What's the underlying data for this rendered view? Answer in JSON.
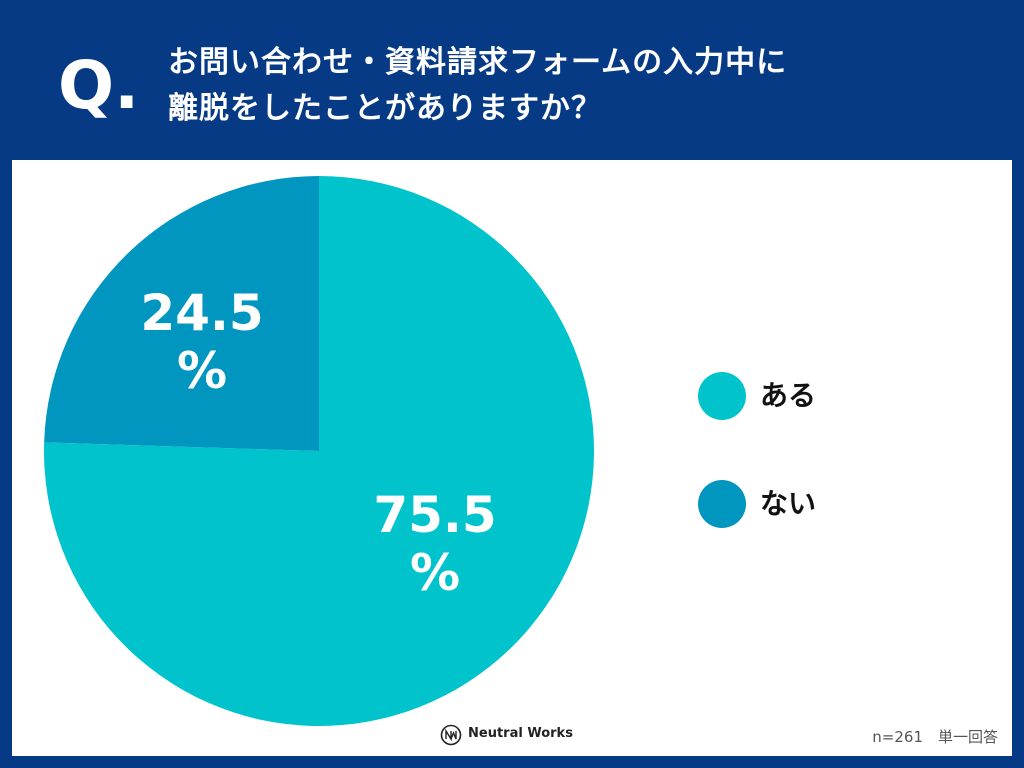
{
  "header": {
    "q_mark": "Q.",
    "question_line1": "お問い合わせ・資料請求フォームの入力中に",
    "question_line2": "離脱をしたことがありますか？"
  },
  "chart_data": {
    "type": "pie",
    "categories": [
      "ある",
      "ない"
    ],
    "values": [
      75.5,
      24.5
    ],
    "unit": "%",
    "colors": [
      "#00c3cc",
      "#0096bf"
    ],
    "slice_labels": [
      [
        "75.5",
        "%"
      ],
      [
        "24.5",
        "%"
      ]
    ],
    "legend_position": "right"
  },
  "legend": {
    "items": [
      {
        "label": "ある",
        "color": "#00c3cc"
      },
      {
        "label": "ない",
        "color": "#0096bf"
      }
    ]
  },
  "brand": {
    "name": "Neutral Works"
  },
  "footnote": "n=261　単一回答",
  "colors": {
    "background": "#063a85",
    "panel": "#ffffff"
  }
}
